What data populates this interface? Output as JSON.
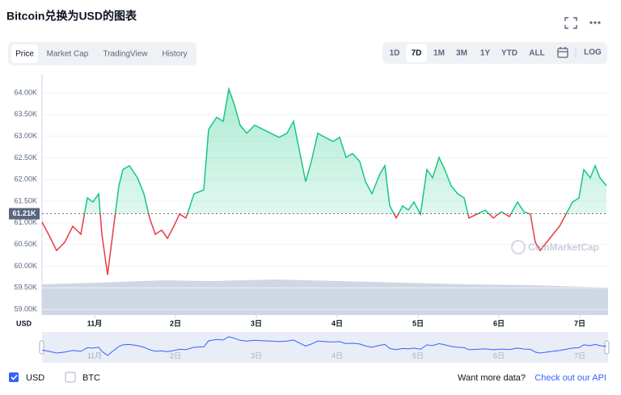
{
  "header": {
    "title": "Bitcoin兑换为USD的图表"
  },
  "tabs": [
    {
      "label": "Price",
      "selected": true
    },
    {
      "label": "Market Cap",
      "selected": false
    },
    {
      "label": "TradingView",
      "selected": false
    },
    {
      "label": "History",
      "selected": false
    }
  ],
  "ranges": [
    {
      "label": "1D",
      "selected": false
    },
    {
      "label": "7D",
      "selected": true
    },
    {
      "label": "1M",
      "selected": false
    },
    {
      "label": "3M",
      "selected": false
    },
    {
      "label": "1Y",
      "selected": false
    },
    {
      "label": "YTD",
      "selected": false
    },
    {
      "label": "ALL",
      "selected": false
    }
  ],
  "log": "LOG",
  "chart_data": {
    "type": "line",
    "x": [
      0.35,
      0.43,
      0.53,
      0.63,
      0.73,
      0.83,
      0.91,
      0.98,
      1.05,
      1.09,
      1.16,
      1.23,
      1.3,
      1.35,
      1.43,
      1.53,
      1.61,
      1.68,
      1.75,
      1.83,
      1.9,
      1.98,
      2.05,
      2.13,
      2.23,
      2.35,
      2.41,
      2.51,
      2.59,
      2.66,
      2.73,
      2.8,
      2.88,
      2.98,
      3.08,
      3.18,
      3.28,
      3.38,
      3.46,
      3.53,
      3.61,
      3.68,
      3.76,
      3.85,
      3.95,
      4.03,
      4.11,
      4.19,
      4.28,
      4.35,
      4.43,
      4.53,
      4.59,
      4.65,
      4.73,
      4.81,
      4.88,
      4.95,
      5.03,
      5.11,
      5.18,
      5.26,
      5.33,
      5.41,
      5.49,
      5.57,
      5.63,
      5.73,
      5.83,
      5.93,
      6.03,
      6.13,
      6.23,
      6.31,
      6.39,
      6.45,
      6.51,
      6.59,
      6.67,
      6.75,
      6.83,
      6.91,
      6.99,
      7.05,
      7.13,
      7.19,
      7.25,
      7.33
    ],
    "series": [
      {
        "color": "#16c784",
        "below_color": "#ea3943",
        "values": [
          61015,
          60735,
          60360,
          60550,
          60920,
          60735,
          61575,
          61480,
          61670,
          60735,
          59800,
          60830,
          61855,
          62230,
          62320,
          62040,
          61670,
          61110,
          60735,
          60830,
          60640,
          60920,
          61200,
          61110,
          61670,
          61760,
          63160,
          63440,
          63345,
          64090,
          63720,
          63255,
          63070,
          63255,
          63160,
          63070,
          62975,
          63070,
          63345,
          62695,
          61950,
          62415,
          63070,
          62975,
          62880,
          62975,
          62510,
          62600,
          62415,
          61950,
          61670,
          62135,
          62320,
          61390,
          61110,
          61390,
          61295,
          61480,
          61200,
          62230,
          62040,
          62510,
          62230,
          61855,
          61670,
          61575,
          61110,
          61200,
          61295,
          61110,
          61255,
          61145,
          61480,
          61255,
          61200,
          60550,
          60360,
          60550,
          60735,
          60920,
          61200,
          61480,
          61575,
          62230,
          62040,
          62320,
          62040,
          61855
        ]
      }
    ],
    "xlim": [
      0.35,
      7.35
    ],
    "xticks": [
      {
        "value": 1,
        "label": "11月"
      },
      {
        "value": 2,
        "label": "2日"
      },
      {
        "value": 3,
        "label": "3日"
      },
      {
        "value": 4,
        "label": "4日"
      },
      {
        "value": 5,
        "label": "5日"
      },
      {
        "value": 6,
        "label": "6日"
      },
      {
        "value": 7,
        "label": "7日"
      }
    ],
    "ylim": [
      58870,
      64430
    ],
    "yticks": [
      {
        "value": 59000,
        "label": "59.00K"
      },
      {
        "value": 59500,
        "label": "59.50K"
      },
      {
        "value": 60000,
        "label": "60.00K"
      },
      {
        "value": 60500,
        "label": "60.50K"
      },
      {
        "value": 61000,
        "label": "61.00K"
      },
      {
        "value": 61500,
        "label": "61.50K"
      },
      {
        "value": 62000,
        "label": "62.00K"
      },
      {
        "value": 62500,
        "label": "62.50K"
      },
      {
        "value": 63000,
        "label": "63.00K"
      },
      {
        "value": 63500,
        "label": "63.50K"
      },
      {
        "value": 64000,
        "label": "64.00K"
      }
    ],
    "ylabel": "USD",
    "current_price": {
      "value": 61210,
      "label": "61.21K"
    },
    "watermark": "CoinMarketCap",
    "grid": true
  },
  "legend": [
    {
      "label": "USD",
      "checked": true
    },
    {
      "label": "BTC",
      "checked": false
    }
  ],
  "footer": {
    "text": "Want more data?",
    "link": "Check out our API"
  }
}
